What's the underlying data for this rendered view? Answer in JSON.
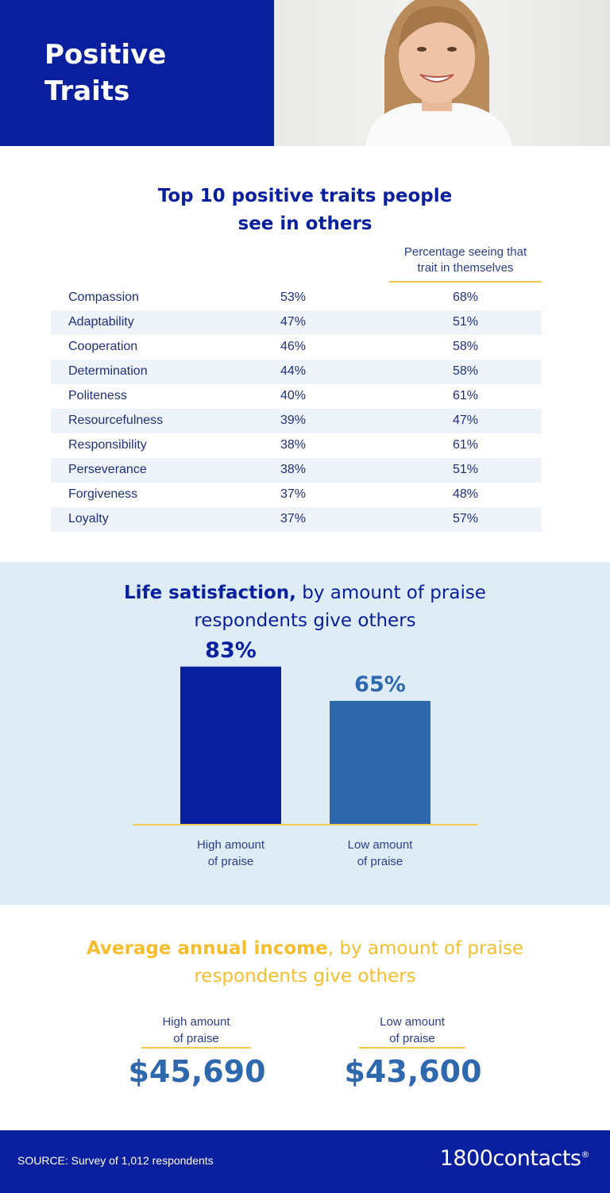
{
  "hero": {
    "title_line1": "Positive",
    "title_line2": "Traits"
  },
  "traits_table": {
    "title_line1": "Top 10 positive traits people",
    "title_line2": "see in others",
    "col2_header_line1": "Percentage seeing that",
    "col2_header_line2": "trait in themselves",
    "rows": [
      {
        "trait": "Compassion",
        "others": "53%",
        "self": "68%"
      },
      {
        "trait": "Adaptability",
        "others": "47%",
        "self": "51%"
      },
      {
        "trait": "Cooperation",
        "others": "46%",
        "self": "58%"
      },
      {
        "trait": "Determination",
        "others": "44%",
        "self": "58%"
      },
      {
        "trait": "Politeness",
        "others": "40%",
        "self": "61%"
      },
      {
        "trait": "Resourcefulness",
        "others": "39%",
        "self": "47%"
      },
      {
        "trait": "Responsibility",
        "others": "38%",
        "self": "61%"
      },
      {
        "trait": "Perseverance",
        "others": "38%",
        "self": "51%"
      },
      {
        "trait": "Forgiveness",
        "others": "37%",
        "self": "48%"
      },
      {
        "trait": "Loyalty",
        "others": "37%",
        "self": "57%"
      }
    ]
  },
  "satisfaction": {
    "title_bold": "Life satisfaction,",
    "title_rest": " by amount of praise",
    "title_line2": "respondents give others"
  },
  "income": {
    "title_bold": "Average annual income",
    "title_rest": ", by amount of praise",
    "title_line2": "respondents give others",
    "high_label_line1": "High amount",
    "high_label_line2": "of praise",
    "high_value": "$45,690",
    "low_label_line1": "Low amount",
    "low_label_line2": "of praise",
    "low_value": "$43,600"
  },
  "footer": {
    "source": "SOURCE: Survey of 1,012 respondents",
    "logo": "1800contacts",
    "logo_mark": "®"
  },
  "colors": {
    "navy": "#0a1f9e",
    "blue": "#3068ae",
    "gold": "#f3c94e",
    "light_band": "#deedf5"
  },
  "chart_data": [
    {
      "type": "table",
      "title": "Top 10 positive traits people see in others",
      "columns": [
        "",
        "",
        "Percentage seeing that trait in themselves"
      ],
      "rows": [
        [
          "Compassion",
          53,
          68
        ],
        [
          "Adaptability",
          47,
          51
        ],
        [
          "Cooperation",
          46,
          58
        ],
        [
          "Determination",
          44,
          58
        ],
        [
          "Politeness",
          40,
          61
        ],
        [
          "Resourcefulness",
          39,
          47
        ],
        [
          "Responsibility",
          38,
          61
        ],
        [
          "Perseverance",
          38,
          51
        ],
        [
          "Forgiveness",
          37,
          48
        ],
        [
          "Loyalty",
          37,
          57
        ]
      ]
    },
    {
      "type": "bar",
      "title": "Life satisfaction, by amount of praise respondents give others",
      "categories": [
        "High amount of praise",
        "Low amount of praise"
      ],
      "category_lines": [
        [
          "High amount",
          "of praise"
        ],
        [
          "Low amount",
          "of praise"
        ]
      ],
      "values": [
        83,
        65
      ],
      "value_labels": [
        "83%",
        "65%"
      ],
      "bar_colors": [
        "#0a1f9e",
        "#3068ae"
      ],
      "label_colors": [
        "#0a1f9e",
        "#3068ae"
      ],
      "ylim": [
        0,
        100
      ],
      "grid": false
    },
    {
      "type": "table",
      "title": "Average annual income, by amount of praise respondents give others",
      "columns": [
        "High amount of praise",
        "Low amount of praise"
      ],
      "rows": [
        [
          45690,
          43600
        ]
      ]
    }
  ]
}
